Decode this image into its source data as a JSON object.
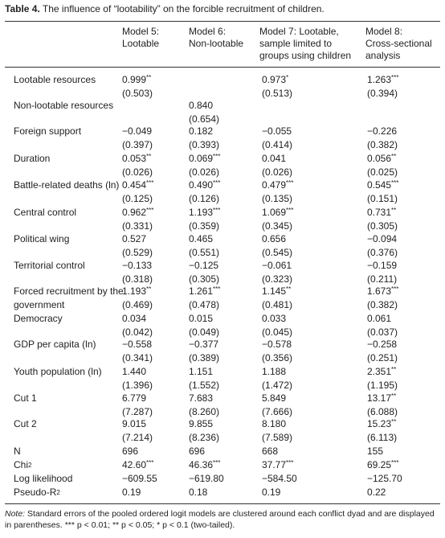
{
  "table": {
    "caption_label": "Table 4.",
    "caption_text": "The influence of “lootability” on the forcible recruitment of children.",
    "headers": [
      {
        "line1": "Model 5:",
        "line2": "Lootable",
        "line3": ""
      },
      {
        "line1": "Model 6:",
        "line2": "Non-lootable",
        "line3": ""
      },
      {
        "line1": "Model 7: Lootable,",
        "line2": "sample limited to",
        "line3": "groups using children"
      },
      {
        "line1": "Model 8:",
        "line2": "Cross-sectional",
        "line3": "analysis"
      }
    ],
    "rows": [
      {
        "label": "Lootable resources",
        "cells": [
          [
            "0.999",
            "**",
            "(0.503)"
          ],
          [
            "",
            "",
            ""
          ],
          [
            "0.973",
            "*",
            "(0.513)"
          ],
          [
            "1.263",
            "***",
            "(0.394)"
          ]
        ]
      },
      {
        "label": "Non-lootable resources",
        "cells": [
          [
            "",
            "",
            ""
          ],
          [
            "0.840",
            "",
            "(0.654)"
          ],
          [
            "",
            "",
            ""
          ],
          [
            "",
            "",
            ""
          ]
        ]
      },
      {
        "label": "Foreign support",
        "cells": [
          [
            "−0.049",
            "",
            "(0.397)"
          ],
          [
            "0.182",
            "",
            "(0.393)"
          ],
          [
            "−0.055",
            "",
            "(0.414)"
          ],
          [
            "−0.226",
            "",
            "(0.382)"
          ]
        ]
      },
      {
        "label": "Duration",
        "cells": [
          [
            "0.053",
            "**",
            "(0.026)"
          ],
          [
            "0.069",
            "***",
            "(0.026)"
          ],
          [
            "0.041",
            "",
            "(0.026)"
          ],
          [
            "0.056",
            "**",
            "(0.025)"
          ]
        ]
      },
      {
        "label": "Battle-related deaths (ln)",
        "cells": [
          [
            "0.454",
            "***",
            "(0.125)"
          ],
          [
            "0.490",
            "***",
            "(0.126)"
          ],
          [
            "0.479",
            "***",
            "(0.135)"
          ],
          [
            "0.545",
            "***",
            "(0.151)"
          ]
        ]
      },
      {
        "label": "Central control",
        "cells": [
          [
            "0.962",
            "***",
            "(0.331)"
          ],
          [
            "1.193",
            "***",
            "(0.359)"
          ],
          [
            "1.069",
            "***",
            "(0.345)"
          ],
          [
            "0.731",
            "**",
            "(0.305)"
          ]
        ]
      },
      {
        "label": "Political wing",
        "cells": [
          [
            "0.527",
            "",
            "(0.529)"
          ],
          [
            "0.465",
            "",
            "(0.551)"
          ],
          [
            "0.656",
            "",
            "(0.545)"
          ],
          [
            "−0.094",
            "",
            "(0.376)"
          ]
        ]
      },
      {
        "label": "Territorial control",
        "cells": [
          [
            "−0.133",
            "",
            "(0.318)"
          ],
          [
            "−0.125",
            "",
            "(0.305)"
          ],
          [
            "−0.061",
            "",
            "(0.323)"
          ],
          [
            "−0.159",
            "",
            "(0.211)"
          ]
        ]
      },
      {
        "label": "Forced recruitment by the government",
        "cells": [
          [
            "1.193",
            "**",
            "(0.469)"
          ],
          [
            "1.261",
            "***",
            "(0.478)"
          ],
          [
            "1.145",
            "**",
            "(0.481)"
          ],
          [
            "1.673",
            "***",
            "(0.382)"
          ]
        ]
      },
      {
        "label": "Democracy",
        "cells": [
          [
            "0.034",
            "",
            "(0.042)"
          ],
          [
            "0.015",
            "",
            "(0.049)"
          ],
          [
            "0.033",
            "",
            "(0.045)"
          ],
          [
            "0.061",
            "",
            "(0.037)"
          ]
        ]
      },
      {
        "label": "GDP per capita (ln)",
        "cells": [
          [
            "−0.558",
            "",
            "(0.341)"
          ],
          [
            "−0.377",
            "",
            "(0.389)"
          ],
          [
            "−0.578",
            "",
            "(0.356)"
          ],
          [
            "−0.258",
            "",
            "(0.251)"
          ]
        ]
      },
      {
        "label": "Youth population (ln)",
        "cells": [
          [
            "1.440",
            "",
            "(1.396)"
          ],
          [
            "1.151",
            "",
            "(1.552)"
          ],
          [
            "1.188",
            "",
            "(1.472)"
          ],
          [
            "2.351",
            "**",
            "(1.195)"
          ]
        ]
      },
      {
        "label": "Cut 1",
        "cells": [
          [
            "6.779",
            "",
            "(7.287)"
          ],
          [
            "7.683",
            "",
            "(8.260)"
          ],
          [
            "5.849",
            "",
            "(7.666)"
          ],
          [
            "13.17",
            "**",
            "(6.088)"
          ]
        ]
      },
      {
        "label": "Cut 2",
        "cells": [
          [
            "9.015",
            "",
            "(7.214)"
          ],
          [
            "9.855",
            "",
            "(8.236)"
          ],
          [
            "8.180",
            "",
            "(7.589)"
          ],
          [
            "15.23",
            "**",
            "(6.113)"
          ]
        ]
      }
    ],
    "stats": [
      {
        "label": "N",
        "label_sup": "",
        "cells": [
          [
            "696",
            ""
          ],
          [
            "696",
            ""
          ],
          [
            "668",
            ""
          ],
          [
            "155",
            ""
          ]
        ]
      },
      {
        "label": "Chi",
        "label_sup": "2",
        "cells": [
          [
            "42.60",
            "***"
          ],
          [
            "46.36",
            "***"
          ],
          [
            "37.77",
            "***"
          ],
          [
            "69.25",
            "***"
          ]
        ]
      },
      {
        "label": "Log likelihood",
        "label_sup": "",
        "cells": [
          [
            "−609.55",
            ""
          ],
          [
            "−619.80",
            ""
          ],
          [
            "−584.50",
            ""
          ],
          [
            "−125.70",
            ""
          ]
        ]
      },
      {
        "label": "Pseudo-R",
        "label_sup": "2",
        "cells": [
          [
            "0.19",
            ""
          ],
          [
            "0.18",
            ""
          ],
          [
            "0.19",
            ""
          ],
          [
            "0.22",
            ""
          ]
        ]
      }
    ],
    "note_label": "Note:",
    "note_text": "Standard errors of the pooled ordered logit models are clustered around each conflict dyad and are displayed in parentheses. *** p < 0.01; ** p < 0.05; * p < 0.1 (two-tailed)."
  }
}
